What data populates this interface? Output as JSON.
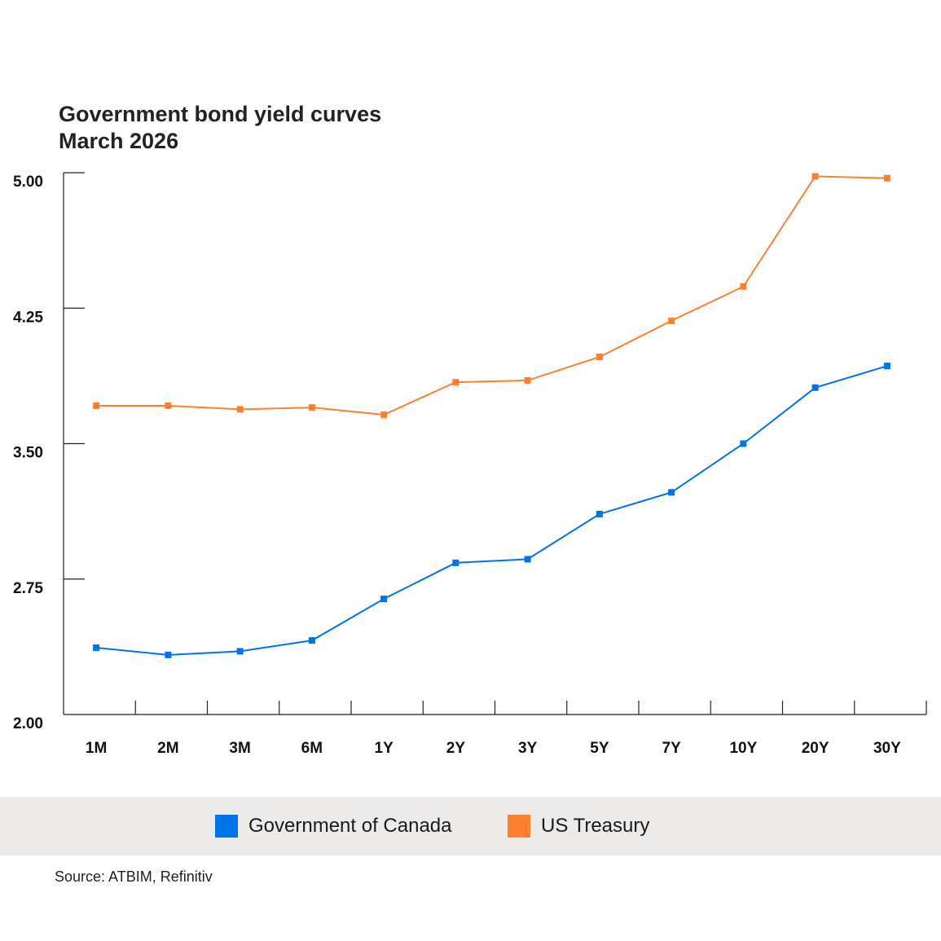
{
  "chart_data": {
    "type": "line",
    "title": "Government bond yield curves",
    "subtitle": "March 2026",
    "categories": [
      "1M",
      "2M",
      "3M",
      "6M",
      "1Y",
      "2Y",
      "3Y",
      "5Y",
      "7Y",
      "10Y",
      "20Y",
      "30Y"
    ],
    "ylim": [
      2.0,
      5.0
    ],
    "yticks": [
      "2.00",
      "2.75",
      "3.50",
      "4.25",
      "5.00"
    ],
    "grid": false,
    "legend_position": "bottom",
    "series": [
      {
        "name": "Government of Canada",
        "color": "#0073e6",
        "values": [
          2.37,
          2.33,
          2.35,
          2.41,
          2.64,
          2.84,
          2.86,
          3.11,
          3.23,
          3.5,
          3.81,
          3.93
        ]
      },
      {
        "name": "US Treasury",
        "color": "#ff7f30",
        "values": [
          3.71,
          3.71,
          3.69,
          3.7,
          3.66,
          3.84,
          3.85,
          3.98,
          4.18,
          4.37,
          4.98,
          4.97
        ]
      }
    ]
  },
  "source": "Source: ATBIM, Refinitiv"
}
